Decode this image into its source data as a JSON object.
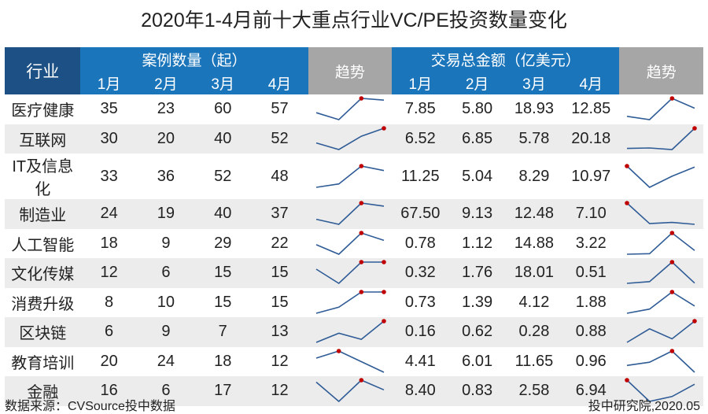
{
  "title": "2020年1-4月前十大重点行业VC/PE投资数量变化",
  "header": {
    "industry": "行业",
    "cases_group": "案例数量（起）",
    "amount_group": "交易总金额（亿美元）",
    "trend": "趋势",
    "months": [
      "1月",
      "2月",
      "3月",
      "4月"
    ]
  },
  "chart_data": {
    "type": "table",
    "title": "2020年1-4月前十大重点行业VC/PE投资数量变化",
    "columns": [
      "行业",
      "案例数量1月",
      "案例数量2月",
      "案例数量3月",
      "案例数量4月",
      "趋势",
      "交易总金额1月",
      "交易总金额2月",
      "交易总金额3月",
      "交易总金额4月",
      "趋势"
    ],
    "rows": [
      {
        "industry": "医疗健康",
        "cases": [
          "35",
          "23",
          "60",
          "57"
        ],
        "amounts": [
          "7.85",
          "5.80",
          "18.93",
          "12.85"
        ]
      },
      {
        "industry": "互联网",
        "cases": [
          "30",
          "20",
          "40",
          "52"
        ],
        "amounts": [
          "6.52",
          "6.85",
          "5.78",
          "20.18"
        ]
      },
      {
        "industry": "IT及信息化",
        "cases": [
          "33",
          "36",
          "52",
          "48"
        ],
        "amounts": [
          "11.25",
          "5.04",
          "8.29",
          "10.97"
        ]
      },
      {
        "industry": "制造业",
        "cases": [
          "24",
          "19",
          "40",
          "37"
        ],
        "amounts": [
          "67.50",
          "9.13",
          "12.48",
          "7.10"
        ]
      },
      {
        "industry": "人工智能",
        "cases": [
          "18",
          "9",
          "29",
          "22"
        ],
        "amounts": [
          "0.78",
          "1.12",
          "14.88",
          "3.22"
        ]
      },
      {
        "industry": "文化传媒",
        "cases": [
          "12",
          "6",
          "15",
          "15"
        ],
        "amounts": [
          "0.32",
          "1.76",
          "18.01",
          "0.51"
        ]
      },
      {
        "industry": "消费升级",
        "cases": [
          "8",
          "10",
          "15",
          "15"
        ],
        "amounts": [
          "0.73",
          "1.39",
          "4.12",
          "1.88"
        ]
      },
      {
        "industry": "区块链",
        "cases": [
          "6",
          "9",
          "7",
          "13"
        ],
        "amounts": [
          "0.16",
          "0.62",
          "0.28",
          "0.88"
        ]
      },
      {
        "industry": "教育培训",
        "cases": [
          "20",
          "24",
          "18",
          "12"
        ],
        "amounts": [
          "4.41",
          "6.01",
          "11.65",
          "0.96"
        ]
      },
      {
        "industry": "金融",
        "cases": [
          "16",
          "6",
          "17",
          "12"
        ],
        "amounts": [
          "8.40",
          "0.83",
          "2.58",
          "6.94"
        ]
      }
    ]
  },
  "colors": {
    "header_blue": "#1b75bb",
    "header_dark": "#1d5186",
    "header_gray": "#a6a6a6",
    "spark_line": "#2f5c96",
    "spark_max": "#c00000"
  },
  "footer": {
    "source": "数据来源：CVSource投中数据",
    "credit": "投中研究院,2020.05"
  }
}
